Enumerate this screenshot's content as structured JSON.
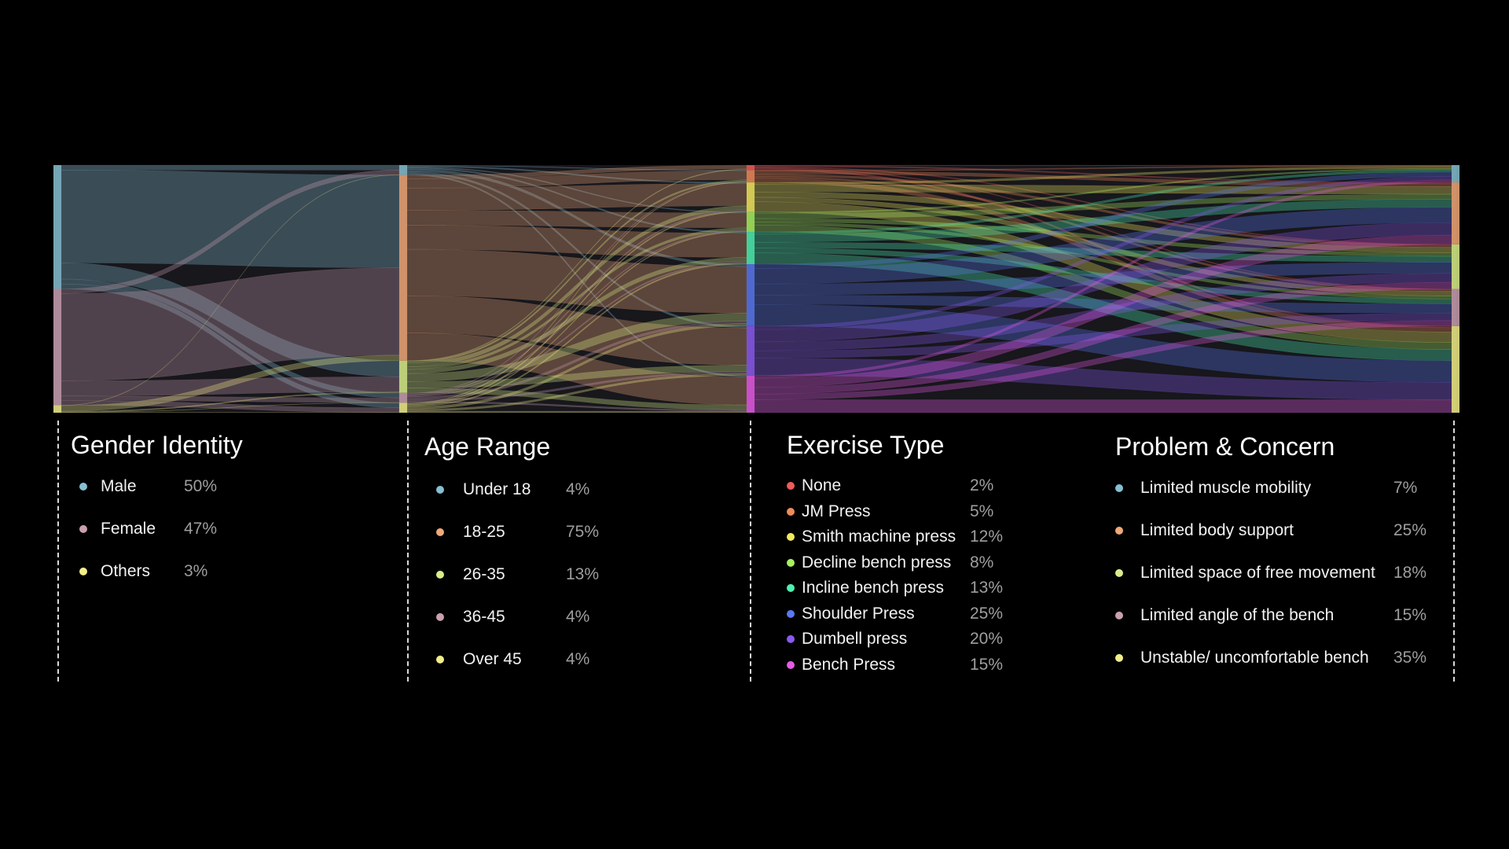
{
  "chart_data": {
    "type": "sankey",
    "stages": [
      {
        "id": "gender",
        "title": "Gender Identity",
        "nodes": [
          {
            "label": "Male",
            "value": "50%",
            "pct": 50,
            "color": "#86bfd0"
          },
          {
            "label": "Female",
            "value": "47%",
            "pct": 47,
            "color": "#c9a0b0"
          },
          {
            "label": "Others",
            "value": "3%",
            "pct": 3,
            "color": "#f2ee8a"
          }
        ]
      },
      {
        "id": "age",
        "title": "Age Range",
        "nodes": [
          {
            "label": "Under 18",
            "value": "4%",
            "pct": 4,
            "color": "#86bfd0"
          },
          {
            "label": "18-25",
            "value": "75%",
            "pct": 75,
            "color": "#f0a878"
          },
          {
            "label": "26-35",
            "value": "13%",
            "pct": 13,
            "color": "#d9ee8a"
          },
          {
            "label": "36-45",
            "value": "4%",
            "pct": 4,
            "color": "#c9a0b0"
          },
          {
            "label": "Over 45",
            "value": "4%",
            "pct": 4,
            "color": "#f2ee8a"
          }
        ]
      },
      {
        "id": "exercise",
        "title": "Exercise Type",
        "nodes": [
          {
            "label": "None",
            "value": "2%",
            "pct": 2,
            "color": "#f05a5a"
          },
          {
            "label": "JM Press",
            "value": "5%",
            "pct": 5,
            "color": "#f08a5a"
          },
          {
            "label": "Smith machine press",
            "value": "12%",
            "pct": 12,
            "color": "#f2e860"
          },
          {
            "label": "Decline bench press",
            "value": "8%",
            "pct": 8,
            "color": "#a8f060"
          },
          {
            "label": "Incline bench press",
            "value": "13%",
            "pct": 13,
            "color": "#4ef0b0"
          },
          {
            "label": "Shoulder Press",
            "value": "25%",
            "pct": 25,
            "color": "#5a78f0"
          },
          {
            "label": "Dumbell press",
            "value": "20%",
            "pct": 20,
            "color": "#8a5af0"
          },
          {
            "label": "Bench Press",
            "value": "15%",
            "pct": 15,
            "color": "#e85ae8"
          }
        ]
      },
      {
        "id": "concern",
        "title": "Problem & Concern",
        "nodes": [
          {
            "label": "Limited muscle mobility",
            "value": "7%",
            "pct": 7,
            "color": "#86bfd0"
          },
          {
            "label": "Limited body support",
            "value": "25%",
            "pct": 25,
            "color": "#f0a878"
          },
          {
            "label": "Limited space of free movement",
            "value": "18%",
            "pct": 18,
            "color": "#d9ee8a"
          },
          {
            "label": "Limited angle of the bench",
            "value": "15%",
            "pct": 15,
            "color": "#c9a0b0"
          },
          {
            "label": "Unstable/ uncomfortable bench",
            "value": "35%",
            "pct": 35,
            "color": "#f2ee8a"
          }
        ]
      }
    ]
  }
}
